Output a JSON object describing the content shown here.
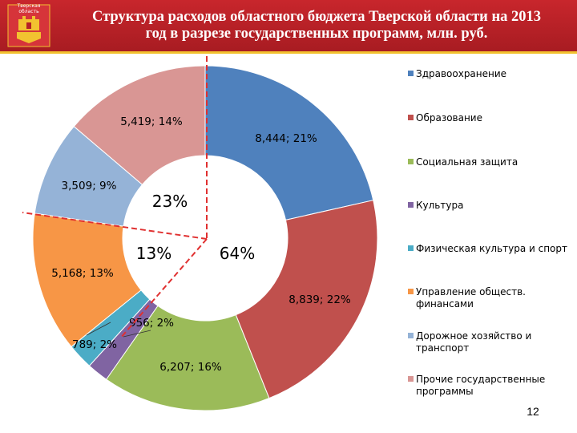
{
  "header": {
    "emblem_text": "Тверская область",
    "title_line1": "Структура расходов областного бюджета Тверской области на 2013",
    "title_line2": "год в разрезе государственных программ, млн. руб."
  },
  "page_number": "12",
  "colors": {
    "header": "#b52026",
    "header_line": "#f2c230",
    "divider": "#e03030"
  },
  "chart_data": {
    "type": "pie",
    "variant": "donut",
    "unit": "млн. руб.",
    "legend_position": "right",
    "slices": [
      {
        "name": "Здравоохранение",
        "value": 8444,
        "label": "8,444; 21%",
        "color": "#4f81bd"
      },
      {
        "name": "Образование",
        "value": 8839,
        "label": "8,839; 22%",
        "color": "#c0504d"
      },
      {
        "name": "Социальная защита",
        "value": 6207,
        "label": "6,207; 16%",
        "color": "#9bbb59"
      },
      {
        "name": "Культура",
        "value": 789,
        "label": "789; 2%",
        "color": "#8064a2"
      },
      {
        "name": "Физическая культура и спорт",
        "value": 956,
        "label": "956; 2%",
        "color": "#4bacc6"
      },
      {
        "name": "Управление обществ. финансами",
        "value": 5168,
        "label": "5,168; 13%",
        "color": "#f79646"
      },
      {
        "name": "Дорожное хозяйство и транспорт",
        "value": 3509,
        "label": "3,509; 9%",
        "color": "#95b3d7"
      },
      {
        "name": "Прочие государственные программы",
        "value": 5419,
        "label": "5,419; 14%",
        "color": "#d99694"
      }
    ],
    "group_labels": [
      "23%",
      "13%",
      "64%"
    ]
  }
}
